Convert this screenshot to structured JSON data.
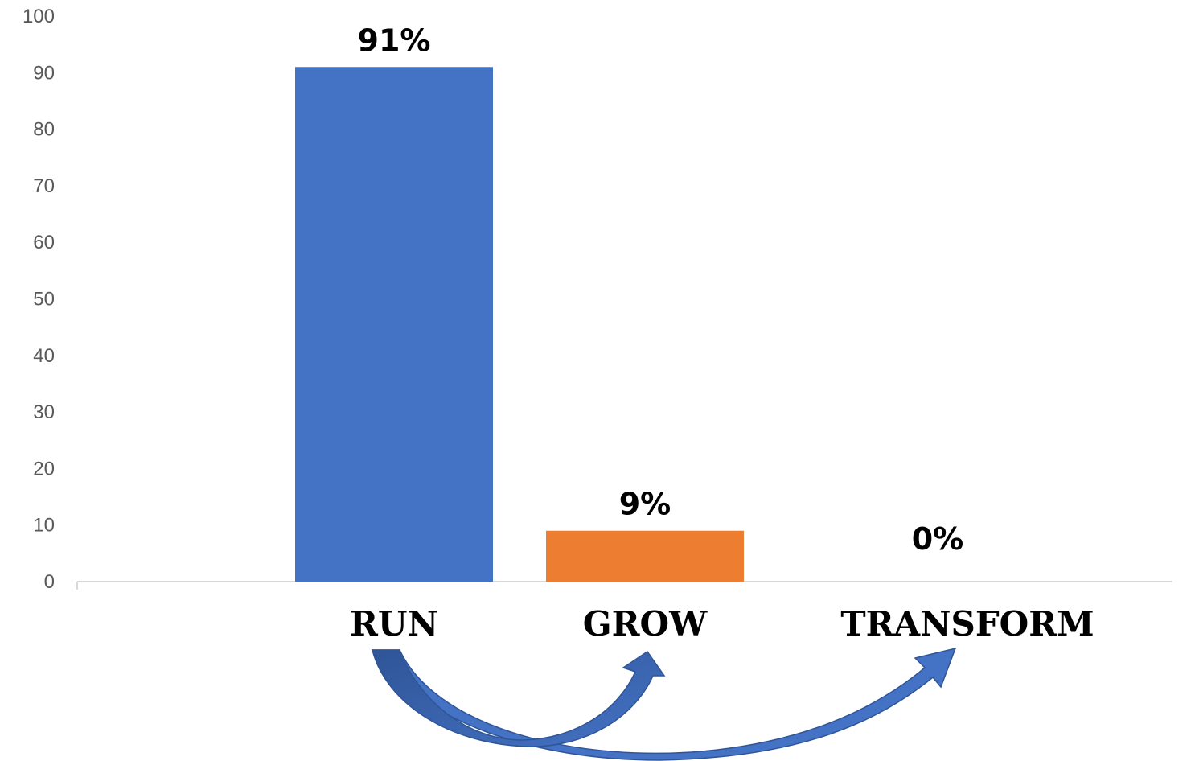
{
  "chart_data": {
    "type": "bar",
    "categories": [
      "RUN",
      "GROW",
      "TRANSFORM"
    ],
    "values": [
      91,
      9,
      0
    ],
    "data_labels": [
      "91%",
      "9%",
      "0%"
    ],
    "colors": [
      "#4472C4",
      "#ED7D31",
      "#A5A5A5"
    ],
    "ylim": [
      0,
      100
    ],
    "yticks": [
      0,
      10,
      20,
      30,
      40,
      50,
      60,
      70,
      80,
      90,
      100
    ],
    "grid": false,
    "legend": "none",
    "title": "",
    "xlabel": "",
    "ylabel": "",
    "annotations": [
      {
        "type": "curved-arrow",
        "from": "RUN",
        "to": "GROW",
        "color": "#4472C4"
      },
      {
        "type": "curved-arrow",
        "from": "RUN",
        "to": "TRANSFORM",
        "color": "#4472C4"
      }
    ]
  }
}
